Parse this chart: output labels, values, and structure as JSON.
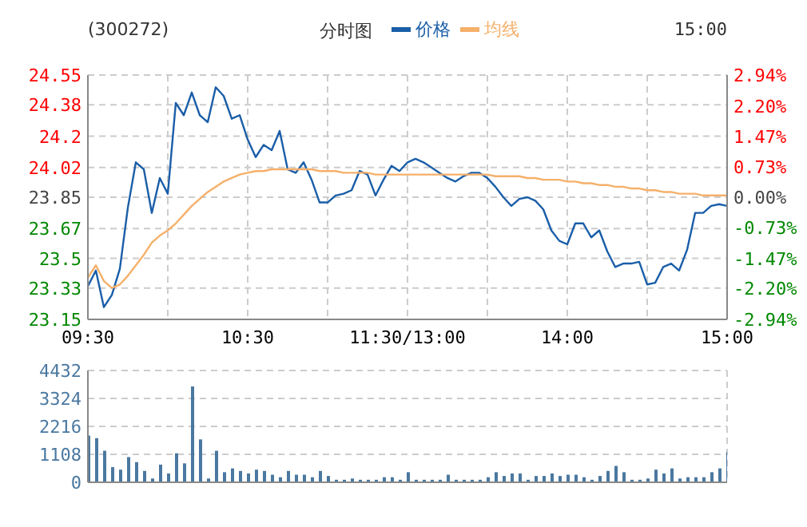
{
  "chart_data": [
    {
      "type": "line",
      "title": "(300272)",
      "subtitle": "分时图",
      "annotations": [
        "15:00"
      ],
      "legend": "top",
      "grid": true,
      "categories": [
        "09:30",
        null,
        null,
        null,
        null,
        null,
        null,
        null,
        null,
        null,
        null,
        null,
        null,
        null,
        null,
        null,
        null,
        null,
        null,
        null,
        "10:30",
        null,
        null,
        null,
        null,
        null,
        null,
        null,
        null,
        null,
        null,
        null,
        null,
        null,
        null,
        null,
        null,
        null,
        null,
        null,
        "11:30/13:00",
        null,
        null,
        null,
        null,
        null,
        null,
        null,
        null,
        null,
        null,
        null,
        null,
        null,
        null,
        null,
        null,
        null,
        null,
        null,
        "14:00",
        null,
        null,
        null,
        null,
        null,
        null,
        null,
        null,
        null,
        null,
        null,
        null,
        null,
        null,
        null,
        null,
        null,
        null,
        null,
        "15:00"
      ],
      "ylim": [
        23.15,
        24.55
      ],
      "yticks": [
        23.15,
        23.33,
        23.5,
        23.67,
        23.85,
        24.02,
        24.2,
        24.38,
        24.55
      ],
      "y2lim": [
        -2.94,
        2.94
      ],
      "y2ticks": [
        {
          "value": -2.94,
          "label": "-2.94%"
        },
        {
          "value": -2.2,
          "label": "-2.20%"
        },
        {
          "value": -1.47,
          "label": "-1.47%"
        },
        {
          "value": -0.73,
          "label": "-0.73%"
        },
        {
          "value": 0,
          "label": "0.00%"
        },
        {
          "value": 0.73,
          "label": "0.73%"
        },
        {
          "value": 1.47,
          "label": "1.47%"
        },
        {
          "value": 2.2,
          "label": "2.20%"
        },
        {
          "value": 2.94,
          "label": "2.94%"
        }
      ],
      "series": [
        {
          "name": "价格",
          "color": "#1a5ea8",
          "values": [
            23.34,
            23.43,
            23.22,
            23.29,
            23.44,
            23.79,
            24.05,
            24.01,
            23.76,
            23.96,
            23.87,
            24.39,
            24.32,
            24.45,
            24.32,
            24.28,
            24.48,
            24.43,
            24.3,
            24.32,
            24.18,
            24.08,
            24.15,
            24.12,
            24.23,
            24.01,
            23.99,
            24.05,
            23.95,
            23.82,
            23.82,
            23.86,
            23.87,
            23.89,
            24.0,
            23.98,
            23.86,
            23.95,
            24.03,
            24.0,
            24.05,
            24.07,
            24.05,
            24.02,
            23.99,
            23.96,
            23.94,
            23.97,
            23.99,
            23.99,
            23.96,
            23.91,
            23.85,
            23.8,
            23.84,
            23.85,
            23.83,
            23.78,
            23.66,
            23.6,
            23.58,
            23.7,
            23.7,
            23.62,
            23.66,
            23.54,
            23.45,
            23.47,
            23.47,
            23.48,
            23.35,
            23.36,
            23.45,
            23.47,
            23.43,
            23.55,
            23.76,
            23.76,
            23.8,
            23.81,
            23.8
          ]
        },
        {
          "name": "均线",
          "color": "#f5b06a",
          "values": [
            23.39,
            23.46,
            23.37,
            23.33,
            23.35,
            23.4,
            23.46,
            23.52,
            23.59,
            23.63,
            23.66,
            23.7,
            23.75,
            23.8,
            23.84,
            23.88,
            23.91,
            23.94,
            23.96,
            23.98,
            23.99,
            24.0,
            24.0,
            24.01,
            24.01,
            24.01,
            24.01,
            24.01,
            24.01,
            24.0,
            24.0,
            24.0,
            23.99,
            23.99,
            23.99,
            23.99,
            23.98,
            23.98,
            23.98,
            23.98,
            23.98,
            23.98,
            23.98,
            23.98,
            23.98,
            23.98,
            23.98,
            23.98,
            23.98,
            23.98,
            23.98,
            23.97,
            23.97,
            23.97,
            23.97,
            23.96,
            23.96,
            23.95,
            23.95,
            23.95,
            23.94,
            23.94,
            23.93,
            23.93,
            23.92,
            23.92,
            23.91,
            23.91,
            23.9,
            23.9,
            23.89,
            23.89,
            23.88,
            23.88,
            23.87,
            23.87,
            23.87,
            23.86,
            23.86,
            23.86,
            23.86
          ]
        }
      ]
    },
    {
      "type": "bar",
      "grid": true,
      "tick_labels": "y",
      "color": "#4a78a0",
      "categories": [
        null,
        null,
        null,
        null,
        null,
        null,
        null,
        null,
        null,
        null,
        null,
        null,
        null,
        null,
        null,
        null,
        null,
        null,
        null,
        null,
        null,
        null,
        null,
        null,
        null,
        null,
        null,
        null,
        null,
        null,
        null,
        null,
        null,
        null,
        null,
        null,
        null,
        null,
        null,
        null,
        null,
        null,
        null,
        null,
        null,
        null,
        null,
        null,
        null,
        null,
        null,
        null,
        null,
        null,
        null,
        null,
        null,
        null,
        null,
        null,
        null,
        null,
        null,
        null,
        null,
        null,
        null,
        null,
        null,
        null,
        null,
        null,
        null,
        null,
        null,
        null,
        null,
        null,
        null,
        null,
        null
      ],
      "ylim": [
        0,
        4432
      ],
      "yticks": [
        0,
        1108,
        2216,
        3324,
        4432
      ],
      "values": [
        1850,
        1750,
        1250,
        600,
        500,
        1000,
        800,
        450,
        150,
        700,
        350,
        1150,
        750,
        3800,
        1700,
        150,
        1250,
        400,
        550,
        450,
        350,
        500,
        450,
        300,
        200,
        450,
        300,
        300,
        200,
        450,
        250,
        100,
        100,
        150,
        100,
        100,
        100,
        200,
        200,
        100,
        400,
        100,
        100,
        100,
        100,
        300,
        100,
        100,
        100,
        100,
        200,
        400,
        250,
        350,
        350,
        100,
        250,
        250,
        350,
        250,
        300,
        300,
        200,
        100,
        250,
        450,
        650,
        400,
        100,
        100,
        150,
        500,
        350,
        550,
        150,
        200,
        200,
        200,
        400,
        550,
        1200
      ]
    }
  ]
}
